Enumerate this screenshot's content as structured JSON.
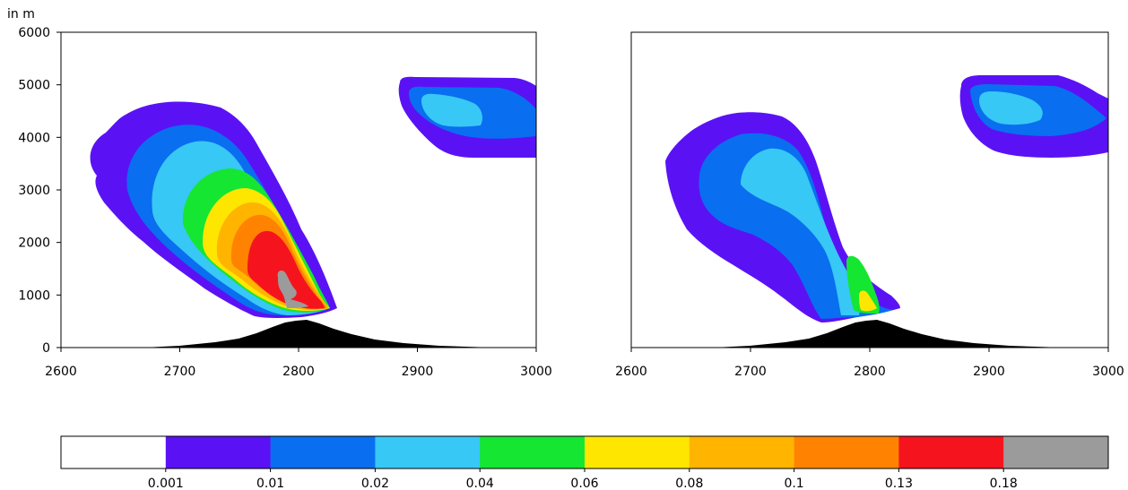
{
  "figure": {
    "y_unit_label": "in m"
  },
  "chart_data": [
    {
      "type": "filled-contour",
      "panel": "left",
      "xlim": [
        2600,
        3000
      ],
      "ylim": [
        0,
        6000
      ],
      "x_ticks": [
        2600,
        2700,
        2800,
        2900,
        3000
      ],
      "y_ticks": [
        0,
        1000,
        2000,
        3000,
        4000,
        5000,
        6000
      ],
      "y_unit": "in m",
      "terrain_peak": {
        "x": 2808,
        "height": 500
      },
      "max_level_reached": 0.18
    },
    {
      "type": "filled-contour",
      "panel": "right",
      "xlim": [
        2600,
        3000
      ],
      "ylim": [
        0,
        6000
      ],
      "x_ticks": [
        2600,
        2700,
        2800,
        2900,
        3000
      ],
      "terrain_peak": {
        "x": 2808,
        "height": 500
      },
      "max_level_reached": 0.08
    }
  ],
  "colorbar": {
    "levels": [
      "0.001",
      "0.01",
      "0.02",
      "0.04",
      "0.06",
      "0.08",
      "0.1",
      "0.13",
      "0.18"
    ],
    "colors": [
      "#ffffff",
      "#5a12f5",
      "#0a6ef0",
      "#37c8f5",
      "#14e632",
      "#ffe600",
      "#ffb400",
      "#ff8200",
      "#f5141e",
      "#9b9b9b"
    ]
  }
}
